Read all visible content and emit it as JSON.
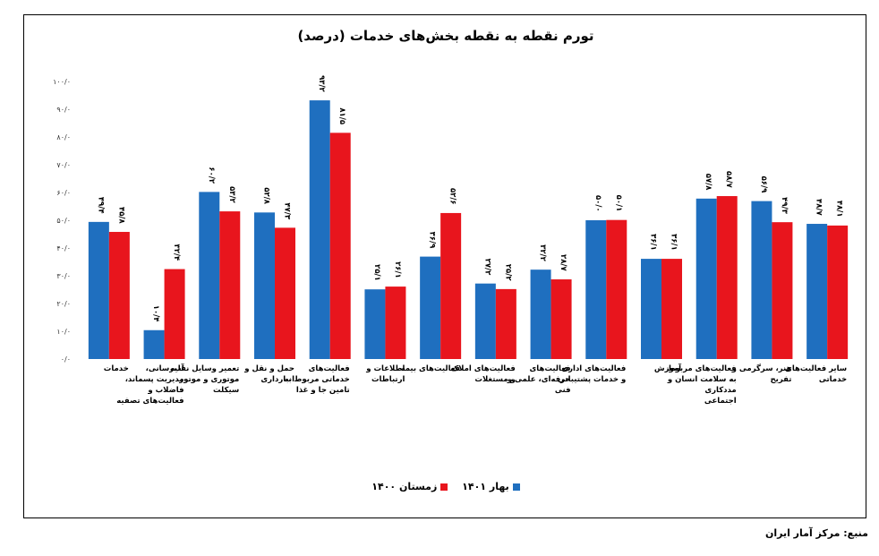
{
  "chart_data": {
    "type": "bar",
    "title": "تورم نقطه به نقطه بخش‌های خدمات (درصد)",
    "ylim": [
      0,
      100
    ],
    "y_ticks": [
      "۰/۰",
      "۱۰/۰",
      "۲۰/۰",
      "۳۰/۰",
      "۴۰/۰",
      "۵۰/۰",
      "۶۰/۰",
      "۷۰/۰",
      "۸۰/۰",
      "۹۰/۰",
      "۱۰۰/۰"
    ],
    "grid": false,
    "legend_position": "bottom",
    "categories": [
      [
        "خدمات"
      ],
      [
        "آب‌رسانی،",
        "مدیریت پسماند،",
        "فاضلاب و",
        "فعالیت‌های تصفیه"
      ],
      [
        "تعمیر وسایل نقلیه",
        "موتوری و موتور",
        "سیکلت"
      ],
      [
        "حمل و نقل و",
        "انبارداری"
      ],
      [
        "فعالیت‌های",
        "خدماتی مربوط به",
        "تامین جا و غذا"
      ],
      [
        "اطلاعات و",
        "ارتباطات"
      ],
      [
        "فعالیت‌های بیمه"
      ],
      [
        "فعالیت‌های املاک",
        "و مستغلات"
      ],
      [
        "فعالیت‌های",
        "حرفه‌ای، علمی و",
        "فنی"
      ],
      [
        "فعالیت‌های اداری",
        "و خدمات پشتیبانی"
      ],
      [
        "آموزش"
      ],
      [
        "فعالیت‌های مربوط",
        "به سلامت انسان و",
        "مددکاری",
        "اجتماعی"
      ],
      [
        "هنر، سرگرمی و",
        "تفریح"
      ],
      [
        "سایر فعالیت‌های",
        "خدماتی"
      ]
    ],
    "series": [
      {
        "name": "بهار ۱۴۰۱",
        "color": "#1f6fbf",
        "values": [
          49.4,
          10.4,
          60.2,
          52.8,
          93.2,
          25.1,
          36.9,
          27.2,
          32.2,
          50.0,
          36.1,
          57.8,
          56.9,
          48.7
        ],
        "labels": [
          "۴۹/۴",
          "۱۰/۴",
          "۶۰/۲",
          "۵۲/۸",
          "۹۳/۲",
          "۲۵/۱",
          "۳۶/۹",
          "۲۷/۲",
          "۳۲/۲",
          "۵۰/۰",
          "۳۶/۱",
          "۵۷/۸",
          "۵۶/۹",
          "۴۸/۷"
        ]
      },
      {
        "name": "زمستان ۱۴۰۰",
        "color": "#e8151d",
        "values": [
          45.8,
          32.4,
          53.2,
          47.3,
          81.5,
          26.1,
          52.6,
          25.2,
          28.7,
          50.1,
          36.1,
          58.7,
          49.3,
          48.1
        ],
        "labels": [
          "۴۵/۸",
          "۳۲/۴",
          "۵۳/۲",
          "۴۷/۳",
          "۸۱/۵",
          "۲۶/۱",
          "۵۲/۶",
          "۲۵/۲",
          "۲۸/۷",
          "۵۰/۱",
          "۳۶/۱",
          "۵۸/۷",
          "۴۹/۳",
          "۴۸/۱"
        ]
      }
    ]
  },
  "source": "منبع: مرکز آمار ایران"
}
